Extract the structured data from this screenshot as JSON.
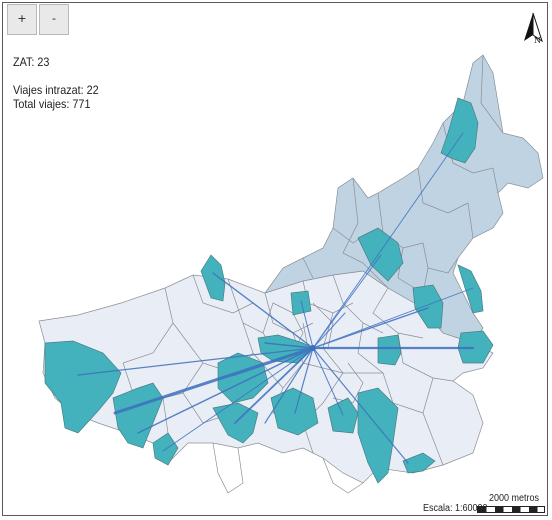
{
  "controls": {
    "zoom_in_label": "+",
    "zoom_out_label": "-"
  },
  "info": {
    "zat_text": "ZAT: 23",
    "intrazonal_text": "Viajes intrazat: 22",
    "total_text": "Total viajes: 771"
  },
  "north_arrow": {
    "label": "N",
    "icon": "north-arrow-icon"
  },
  "scale": {
    "title": "2000 metros",
    "label": "Escala: 1:60000"
  },
  "colors": {
    "zone_light": "#e9eef6",
    "zone_medium": "#bfd3e3",
    "zone_highlight": "#44b2bc",
    "zone_border": "#8a8f96",
    "flow_line": "#3d6fbf"
  }
}
